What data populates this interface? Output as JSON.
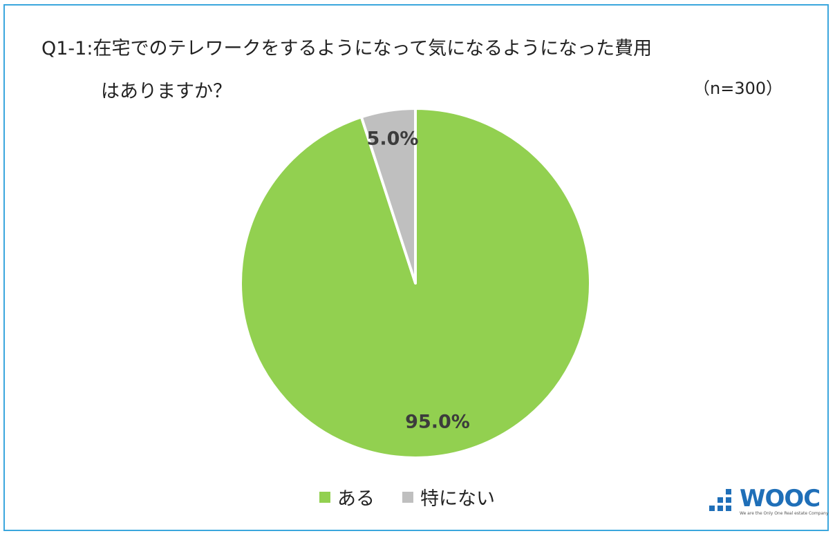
{
  "header": {
    "title_line1": "Q1-1:在宅でのテレワークをするようになって気になるようになった費用",
    "title_line2": "はありますか？",
    "sample_size": "（n=300）"
  },
  "chart_data": {
    "type": "pie",
    "start_angle_deg": 0,
    "direction": "counterclockwise",
    "slices": [
      {
        "label": "ある",
        "value": 95.0,
        "display": "95.0%",
        "color": "#92d050"
      },
      {
        "label": "特にない",
        "value": 5.0,
        "display": "5.0%",
        "color": "#bfbfbf"
      }
    ],
    "legend_position": "bottom"
  },
  "logo": {
    "wordmark": "WOOC",
    "tagline": "We are the Only One Real estate Company"
  },
  "colors": {
    "frame": "#3aa6dd",
    "logo_blue": "#1f6fb8"
  }
}
